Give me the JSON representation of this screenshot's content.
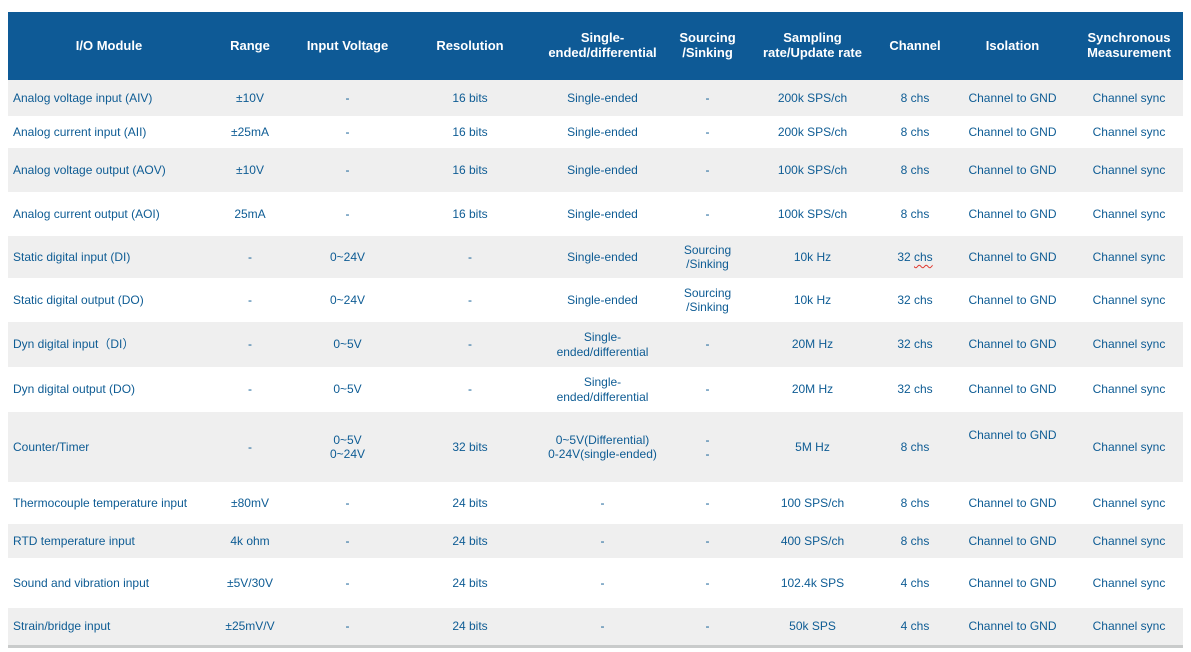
{
  "colors": {
    "header_background": "#0E5A96",
    "header_text": "#FFFFFF",
    "body_text": "#0E5C94",
    "stripe_row_background": "#EFEFEF",
    "plain_row_background": "#FFFFFF",
    "bottom_border": "#C9CBCB",
    "spellcheck_underline": "#E0362C"
  },
  "table": {
    "columns": [
      {
        "key": "io-module",
        "label": "I/O Module"
      },
      {
        "key": "range",
        "label": "Range"
      },
      {
        "key": "input-voltage",
        "label": "Input Voltage"
      },
      {
        "key": "resolution",
        "label": "Resolution"
      },
      {
        "key": "single-ended-differential",
        "label": "Single-\nended/differential"
      },
      {
        "key": "sourcing-sinking",
        "label": "Sourcing\n/Sinking"
      },
      {
        "key": "sampling-rate-update-rate",
        "label": "Sampling\nrate/Update rate"
      },
      {
        "key": "channel",
        "label": "Channel"
      },
      {
        "key": "isolation",
        "label": "Isolation"
      },
      {
        "key": "synchronous-measurement",
        "label": "Synchronous\nMeasurement"
      }
    ],
    "rows": [
      {
        "cells": [
          "Analog voltage input (AIV)",
          "±10V",
          "-",
          "16 bits",
          "Single-ended",
          "-",
          "200k SPS/ch",
          "8 chs",
          "Channel to GND",
          "Channel sync"
        ]
      },
      {
        "cells": [
          "Analog current input (AII)",
          "±25mA",
          "-",
          "16 bits",
          "Single-ended",
          "-",
          "200k SPS/ch",
          "8 chs",
          "Channel to GND",
          "Channel sync"
        ]
      },
      {
        "cells": [
          "Analog voltage output (AOV)",
          "±10V",
          "-",
          "16 bits",
          "Single-ended",
          "-",
          "100k SPS/ch",
          "8 chs",
          "Channel to GND",
          "Channel sync"
        ]
      },
      {
        "cells": [
          "Analog current output (AOI)",
          "25mA",
          "-",
          "16 bits",
          "Single-ended",
          "-",
          "100k SPS/ch",
          "8 chs",
          "Channel to GND",
          "Channel sync"
        ]
      },
      {
        "cells": [
          "Static digital input (DI)",
          "-",
          "0~24V",
          "-",
          "Single-ended",
          "Sourcing\n/Sinking",
          "10k Hz",
          "32 chs",
          "Channel to GND",
          "Channel sync"
        ]
      },
      {
        "cells": [
          "Static digital output (DO)",
          "-",
          "0~24V",
          "-",
          "Single-ended",
          "Sourcing\n/Sinking",
          "10k Hz",
          "32 chs",
          "Channel to GND",
          "Channel sync"
        ]
      },
      {
        "cells": [
          "Dyn digital input（DI）",
          "-",
          "0~5V",
          "-",
          "Single-ended/differential",
          "-",
          "20M Hz",
          "32 chs",
          "Channel to GND",
          "Channel sync"
        ]
      },
      {
        "cells": [
          "Dyn digital output (DO)",
          "-",
          "0~5V",
          "-",
          "Single-ended/differential",
          "-",
          "20M Hz",
          "32 chs",
          "Channel to GND",
          "Channel sync"
        ]
      },
      {
        "cells": [
          "Counter/Timer",
          "-",
          "0~5V\n0~24V",
          "32 bits",
          "0~5V(Differential)\n0-24V(single-ended)",
          "-\n-",
          "5M Hz",
          "8 chs",
          "Channel to GND",
          "Channel sync"
        ]
      },
      {
        "cells": [
          "Thermocouple temperature input",
          "±80mV",
          "-",
          "24 bits",
          "-",
          "-",
          "100 SPS/ch",
          "8 chs",
          "Channel to GND",
          "Channel sync"
        ]
      },
      {
        "cells": [
          "RTD temperature input",
          "4k ohm",
          "-",
          "24 bits",
          "-",
          "-",
          "400 SPS/ch",
          "8 chs",
          "Channel to GND",
          "Channel sync"
        ]
      },
      {
        "cells": [
          "Sound and vibration input",
          "±5V/30V",
          "-",
          "24 bits",
          "-",
          "-",
          "102.4k SPS",
          "4 chs",
          "Channel to GND",
          "Channel sync"
        ]
      },
      {
        "cells": [
          "Strain/bridge input",
          "±25mV/V",
          "-",
          "24 bits",
          "-",
          "-",
          "50k SPS",
          "4 chs",
          "Channel to GND",
          "Channel sync"
        ]
      }
    ],
    "spell_error": {
      "row": 4,
      "col": 7,
      "word": "chs"
    },
    "raised_isolation": {
      "row": 8,
      "col": 8
    }
  }
}
